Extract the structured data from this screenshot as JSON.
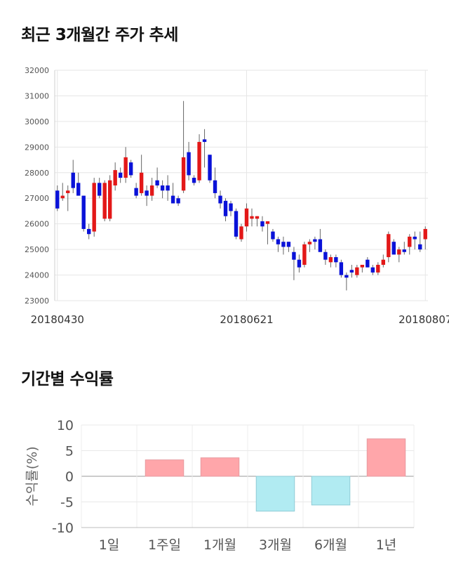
{
  "sections": {
    "price_title": "최근 3개월간 주가 추세",
    "return_title": "기간별 수익률"
  },
  "colors": {
    "up": "#e31818",
    "down": "#0a12d8",
    "positive_bar": "#ffa6aa",
    "negative_bar": "#b1ebf2",
    "grid": "#e6e6e6"
  },
  "chart_data": [
    {
      "type": "candlestick",
      "title": "최근 3개월간 주가 추세",
      "ylim": [
        23000,
        32000
      ],
      "yticks": [
        "23000",
        "24000",
        "25000",
        "26000",
        "27000",
        "28000",
        "29000",
        "30000",
        "31000",
        "32000"
      ],
      "xtick_labels": [
        {
          "label": "20180430",
          "index": 0
        },
        {
          "label": "20180621",
          "index": 36
        },
        {
          "label": "20180807",
          "index": 70
        }
      ],
      "candles": [
        [
          27300,
          27500,
          26500,
          26600
        ],
        [
          27000,
          27600,
          26900,
          27100
        ],
        [
          27200,
          27500,
          26500,
          27300
        ],
        [
          28000,
          28500,
          27200,
          27400
        ],
        [
          27600,
          28000,
          27100,
          27100
        ],
        [
          27100,
          27100,
          25700,
          25800
        ],
        [
          25800,
          26000,
          25400,
          25600
        ],
        [
          25700,
          27800,
          25500,
          27600
        ],
        [
          27600,
          27800,
          27000,
          27100
        ],
        [
          26200,
          27700,
          26100,
          27600
        ],
        [
          26200,
          27900,
          26100,
          27700
        ],
        [
          27500,
          28400,
          27300,
          28100
        ],
        [
          28000,
          28200,
          27600,
          27800
        ],
        [
          27800,
          29000,
          27600,
          28600
        ],
        [
          28400,
          28500,
          27800,
          27900
        ],
        [
          27400,
          27600,
          27000,
          27100
        ],
        [
          27200,
          28700,
          27100,
          28000
        ],
        [
          27300,
          27500,
          26700,
          27100
        ],
        [
          27100,
          27800,
          26900,
          27500
        ],
        [
          27700,
          28200,
          27400,
          27500
        ],
        [
          27500,
          27700,
          27000,
          27300
        ],
        [
          27500,
          27900,
          26900,
          27300
        ],
        [
          27100,
          27600,
          26800,
          26800
        ],
        [
          27000,
          27100,
          26700,
          26800
        ],
        [
          27300,
          30800,
          27200,
          28600
        ],
        [
          28800,
          29200,
          27700,
          27900
        ],
        [
          27800,
          27900,
          27500,
          27600
        ],
        [
          27700,
          29500,
          27600,
          29200
        ],
        [
          29300,
          29700,
          28200,
          29200
        ],
        [
          28700,
          28700,
          27600,
          27700
        ],
        [
          27700,
          28200,
          27000,
          27200
        ],
        [
          27100,
          27300,
          26600,
          26800
        ],
        [
          26900,
          27000,
          26100,
          26300
        ],
        [
          26800,
          26900,
          26300,
          26500
        ],
        [
          26500,
          26600,
          25400,
          25500
        ],
        [
          25400,
          26000,
          25300,
          25900
        ],
        [
          25900,
          26800,
          25700,
          26600
        ],
        [
          26200,
          26600,
          25900,
          26300
        ],
        [
          26200,
          26300,
          25900,
          26300
        ],
        [
          26100,
          26300,
          25700,
          25900
        ],
        [
          26000,
          26100,
          25200,
          26100
        ],
        [
          25700,
          25800,
          25300,
          25400
        ],
        [
          25400,
          25500,
          24900,
          25200
        ],
        [
          25300,
          25500,
          24800,
          25100
        ],
        [
          25300,
          25300,
          24900,
          25100
        ],
        [
          24900,
          25100,
          23800,
          24600
        ],
        [
          24600,
          24800,
          24100,
          24300
        ],
        [
          24400,
          25300,
          24300,
          25200
        ],
        [
          25200,
          25400,
          24900,
          25300
        ],
        [
          25400,
          25500,
          25000,
          25300
        ],
        [
          25400,
          25800,
          24900,
          24900
        ],
        [
          24900,
          25000,
          24400,
          24600
        ],
        [
          24500,
          24800,
          24300,
          24700
        ],
        [
          24700,
          24800,
          24300,
          24500
        ],
        [
          24500,
          24600,
          23900,
          24000
        ],
        [
          24000,
          24100,
          23400,
          23900
        ],
        [
          24200,
          24400,
          23900,
          24100
        ],
        [
          24000,
          24400,
          23900,
          24300
        ],
        [
          24300,
          24400,
          24100,
          24400
        ],
        [
          24600,
          24700,
          24300,
          24300
        ],
        [
          24300,
          24400,
          24000,
          24100
        ],
        [
          24100,
          24500,
          24000,
          24400
        ],
        [
          24400,
          24800,
          24300,
          24600
        ],
        [
          24700,
          25700,
          24500,
          25600
        ],
        [
          25300,
          25400,
          24800,
          24800
        ],
        [
          24800,
          25100,
          24500,
          25000
        ],
        [
          25000,
          25300,
          24800,
          24900
        ],
        [
          25100,
          25600,
          24800,
          25500
        ],
        [
          25500,
          25700,
          25000,
          25400
        ],
        [
          25200,
          25700,
          24900,
          25000
        ],
        [
          25400,
          25900,
          25000,
          25800
        ]
      ]
    },
    {
      "type": "bar",
      "title": "기간별 수익률",
      "ylabel": "수익률(%)",
      "ylim": [
        -10,
        10
      ],
      "yticks": [
        "10",
        "5",
        "0",
        "-5",
        "-10"
      ],
      "categories": [
        "1일",
        "1주일",
        "1개월",
        "3개월",
        "6개월",
        "1년"
      ],
      "values": [
        0.0,
        3.2,
        3.6,
        -6.8,
        -5.6,
        7.3
      ]
    }
  ]
}
